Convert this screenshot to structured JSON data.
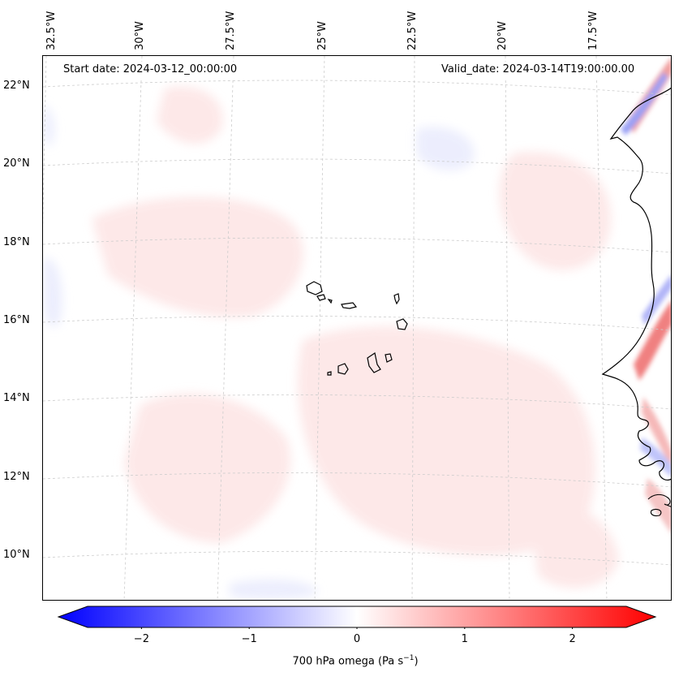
{
  "header": {
    "start_date": "Start date: 2024-03-12_00:00:00",
    "valid_date": "Valid_date: 2024-03-14T19:00:00.00"
  },
  "map": {
    "longitude_labels": [
      "32.5°W",
      "30°W",
      "27.5°W",
      "25°W",
      "22.5°W",
      "20°W",
      "17.5°W"
    ],
    "latitude_labels": [
      "22°N",
      "20°N",
      "18°N",
      "16°N",
      "14°N",
      "12°N",
      "10°N"
    ],
    "gridlines": true,
    "field": "700 hPa omega",
    "features": [
      "Cape Verde islands",
      "West African coastline"
    ]
  },
  "colorbar": {
    "ticks": [
      "−2",
      "−1",
      "0",
      "1",
      "2"
    ],
    "tick_values": [
      -2,
      -1,
      0,
      1,
      2
    ],
    "range": [
      -2.5,
      2.5
    ],
    "label": "700 hPa omega (Pa s⁻¹)",
    "colors": {
      "min": "#0000ff",
      "mid": "#ffffff",
      "max": "#ff0000"
    }
  }
}
